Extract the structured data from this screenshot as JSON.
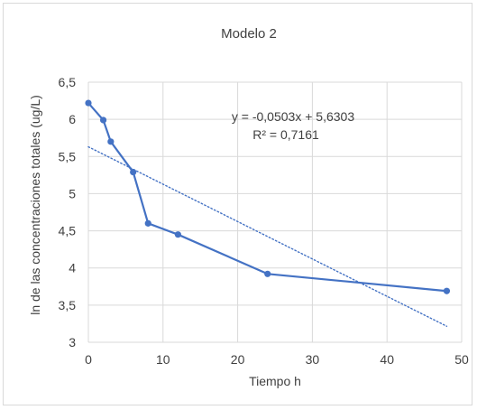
{
  "chart_data": {
    "type": "scatter",
    "title": "Modelo 2",
    "xlabel": "Tiempo h",
    "ylabel": "ln de las concentraciones totales (ug/L)",
    "xlim": [
      0,
      50
    ],
    "ylim": [
      3,
      6.5
    ],
    "x_ticks": [
      0,
      10,
      20,
      30,
      40,
      50
    ],
    "y_ticks": [
      3,
      3.5,
      4,
      4.5,
      5,
      5.5,
      6,
      6.5
    ],
    "x_tick_labels": [
      "0",
      "10",
      "20",
      "30",
      "40",
      "50"
    ],
    "y_tick_labels": [
      "3",
      "3,5",
      "4",
      "4,5",
      "5",
      "5,5",
      "6",
      "6,5"
    ],
    "grid": true,
    "legend": "none",
    "series": [
      {
        "x": [
          0,
          2,
          3,
          6,
          8,
          12,
          24,
          48
        ],
        "y": [
          6.22,
          5.99,
          5.7,
          5.29,
          4.6,
          4.45,
          3.92,
          3.69
        ],
        "color": "#4472c4",
        "style": "line-markers"
      }
    ],
    "trendline": {
      "type": "linear",
      "slope": -0.0503,
      "intercept": 5.6303,
      "x_range": [
        0,
        48
      ],
      "color": "#4472c4",
      "style": "dotted"
    },
    "annotations": {
      "equation": "y = -0,0503x + 5,6303",
      "r_squared": "R² = 0,7161"
    }
  }
}
